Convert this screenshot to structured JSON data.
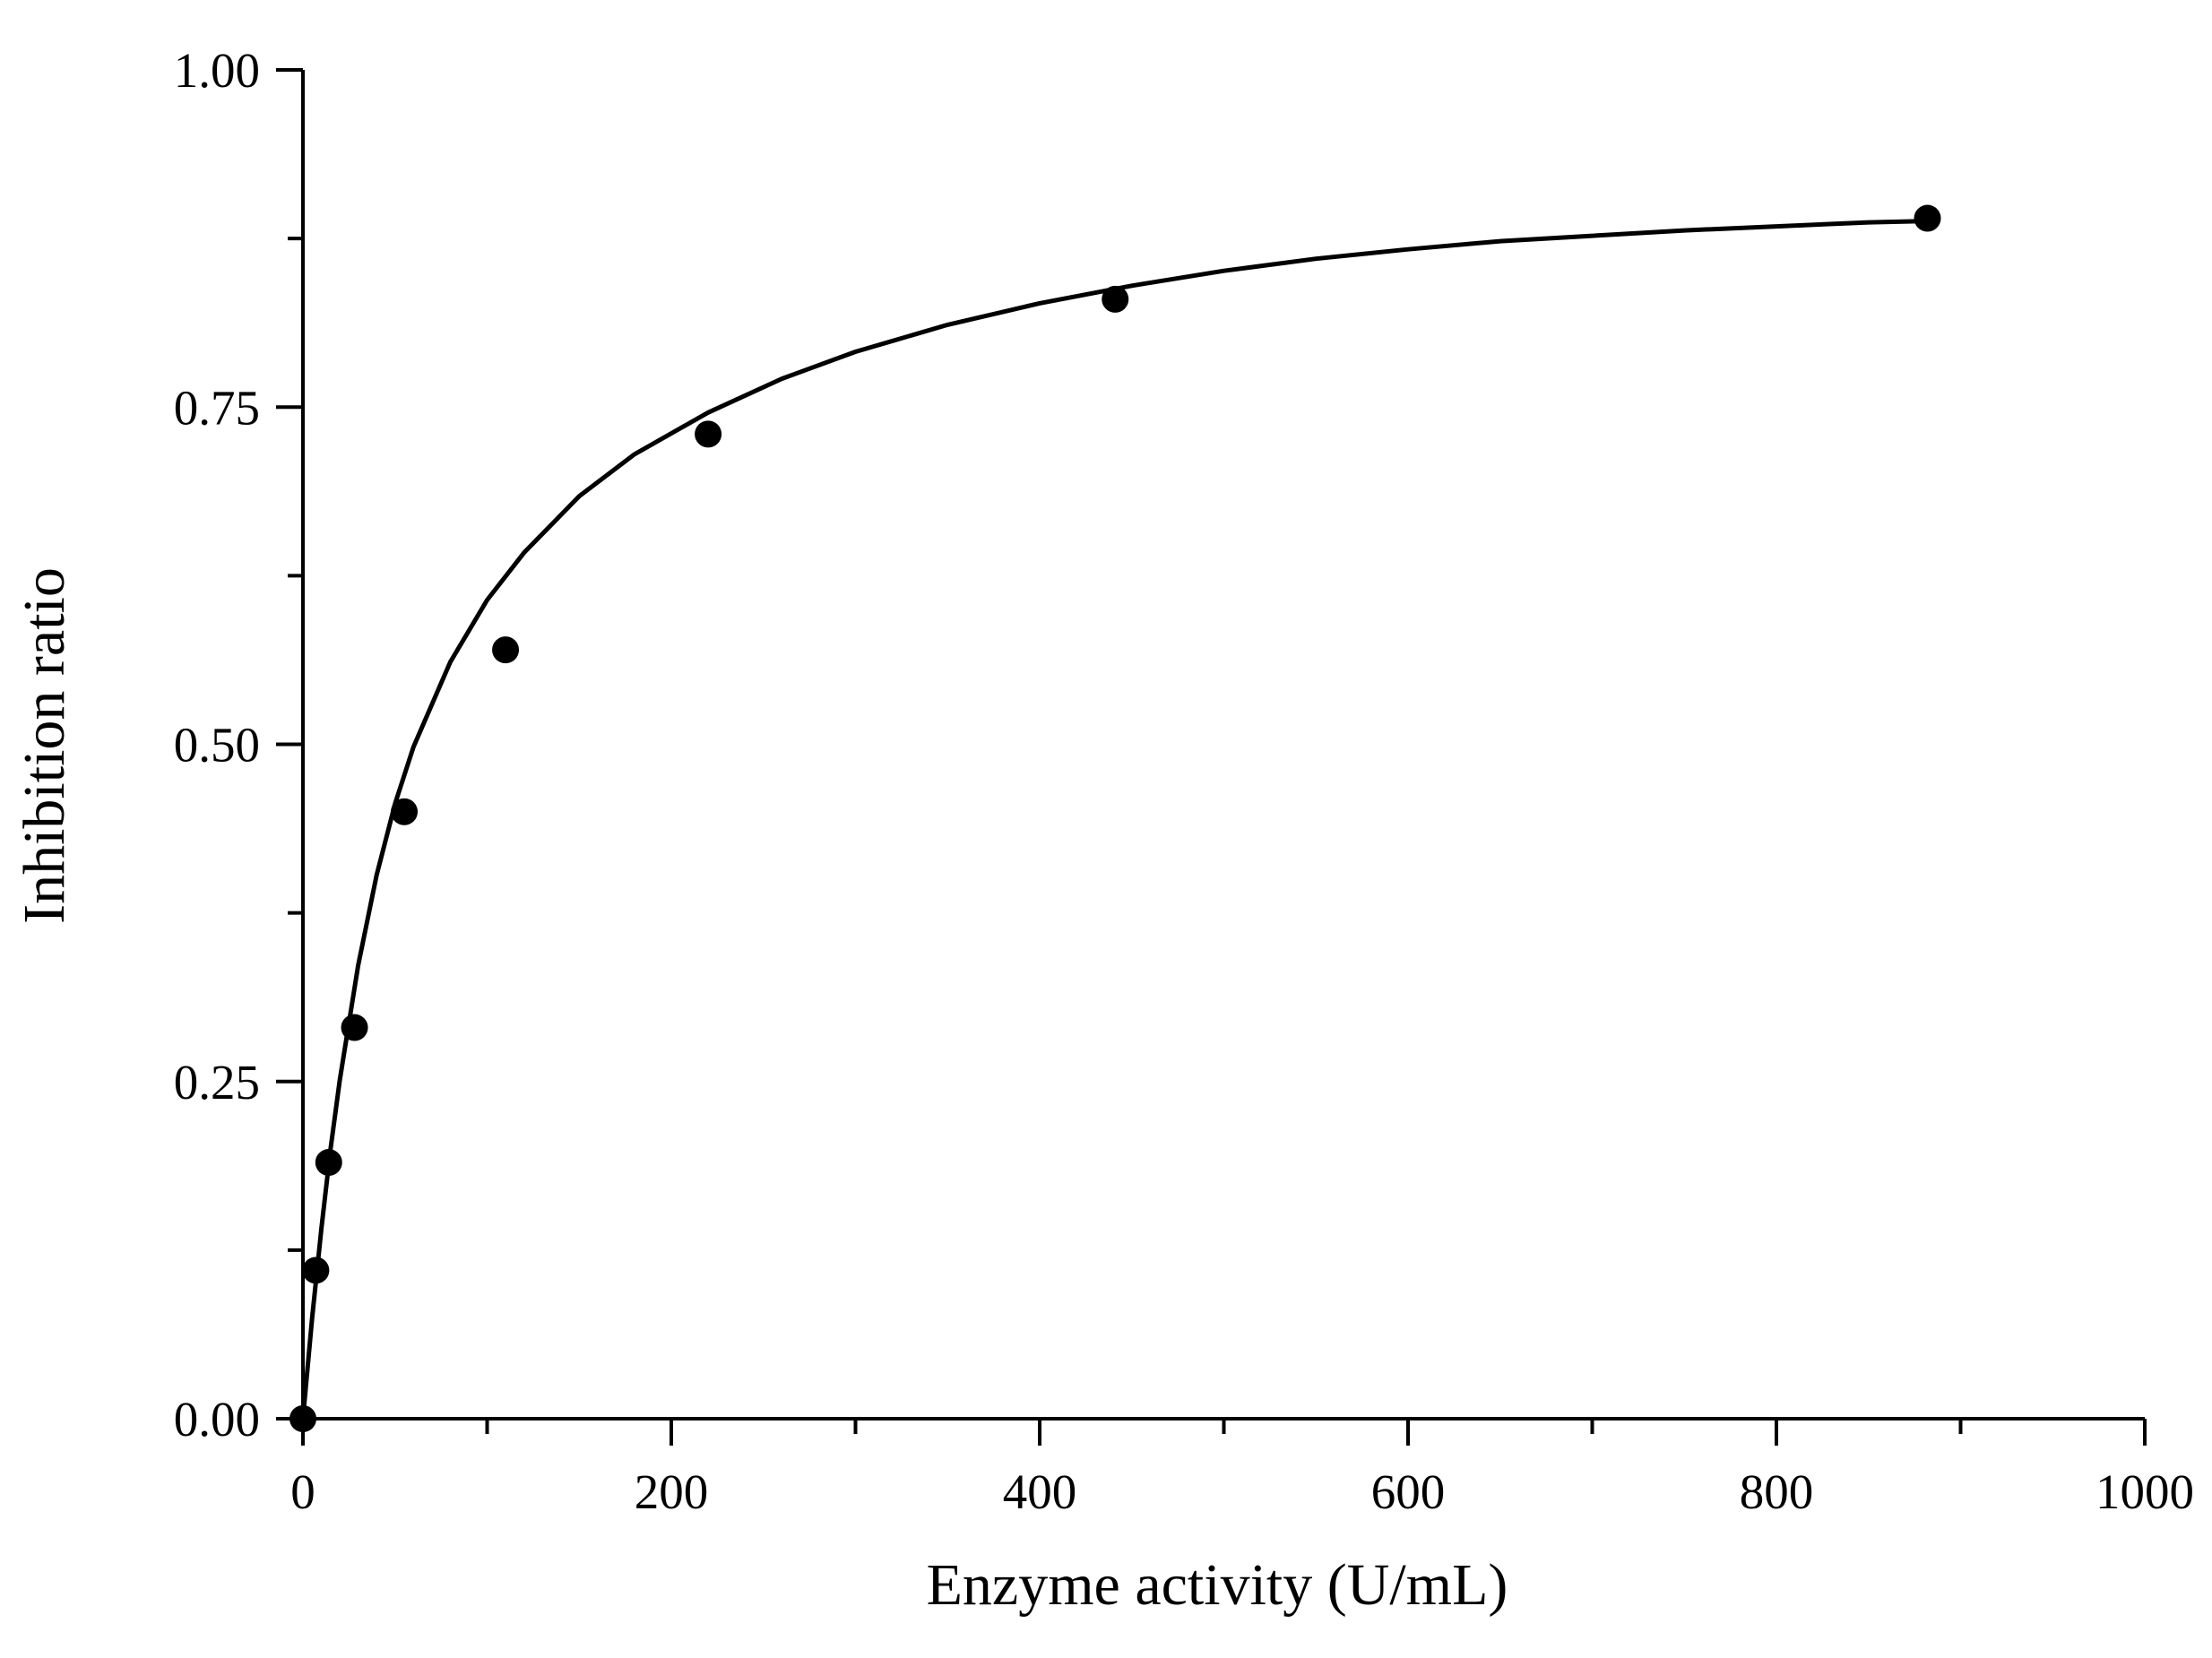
{
  "chart_data": {
    "type": "scatter",
    "xlabel": "Enzyme activity (U/mL)",
    "ylabel": "Inhibition ratio",
    "xlim": [
      0,
      1000
    ],
    "ylim": [
      0,
      1
    ],
    "x_ticks": [
      0,
      200,
      400,
      600,
      800,
      1000
    ],
    "x_tick_labels": [
      "0",
      "200",
      "400",
      "600",
      "800",
      "1000"
    ],
    "x_minor_ticks": [
      100,
      300,
      500,
      700,
      900
    ],
    "y_ticks": [
      0,
      0.25,
      0.5,
      0.75,
      1.0
    ],
    "y_tick_labels": [
      "0.00",
      "0.25",
      "0.50",
      "0.75",
      "1.00"
    ],
    "y_minor_ticks": [
      0.125,
      0.375,
      0.625,
      0.875
    ],
    "grid": false,
    "series": [
      {
        "kind": "scatter",
        "marker": "filled-circle",
        "color": "#000000",
        "x": [
          0,
          7,
          14,
          28,
          55,
          110,
          220,
          441,
          882
        ],
        "y": [
          0.0,
          0.11,
          0.19,
          0.29,
          0.45,
          0.57,
          0.73,
          0.83,
          0.89
        ]
      },
      {
        "kind": "line",
        "color": "#000000",
        "x": [
          0,
          5,
          10,
          15,
          20,
          30,
          40,
          50,
          60,
          80,
          100,
          120,
          150,
          180,
          220,
          260,
          300,
          350,
          400,
          450,
          500,
          550,
          600,
          650,
          700,
          750,
          800,
          850,
          882
        ],
        "y": [
          0.0,
          0.075,
          0.141,
          0.2,
          0.251,
          0.336,
          0.403,
          0.456,
          0.498,
          0.561,
          0.607,
          0.642,
          0.684,
          0.715,
          0.746,
          0.771,
          0.791,
          0.811,
          0.827,
          0.84,
          0.851,
          0.86,
          0.867,
          0.873,
          0.877,
          0.881,
          0.884,
          0.887,
          0.888
        ]
      }
    ]
  }
}
